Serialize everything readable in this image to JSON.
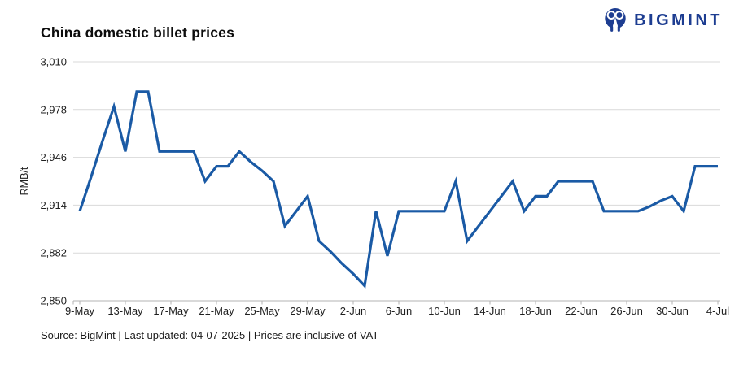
{
  "header": {
    "title": "China domestic billet prices"
  },
  "logo": {
    "text": "BIGMINT",
    "color": "#1d3d91"
  },
  "footer": {
    "text": "Source: BigMint | Last updated: 04-07-2025 | Prices are inclusive of VAT"
  },
  "chart_data": {
    "type": "line",
    "title": "China domestic billet prices",
    "xlabel": "",
    "ylabel": "RMB/t",
    "ylim": [
      2850,
      3010
    ],
    "yticks": [
      2850,
      2882,
      2914,
      2946,
      2978,
      3010
    ],
    "xticks": [
      "9-May",
      "13-May",
      "17-May",
      "21-May",
      "25-May",
      "29-May",
      "2-Jun",
      "6-Jun",
      "10-Jun",
      "14-Jun",
      "18-Jun",
      "22-Jun",
      "26-Jun",
      "30-Jun",
      "4-Jul"
    ],
    "grid": true,
    "legend": "none",
    "line_color": "#1a5aa5",
    "grid_color": "#d9d9d9",
    "axis_color": "#b3b3b3",
    "tick_text_color": "#1f1f1f",
    "x": [
      "9-May",
      "10-May",
      "11-May",
      "12-May",
      "13-May",
      "14-May",
      "15-May",
      "16-May",
      "17-May",
      "18-May",
      "19-May",
      "20-May",
      "21-May",
      "22-May",
      "23-May",
      "24-May",
      "25-May",
      "26-May",
      "27-May",
      "28-May",
      "29-May",
      "30-May",
      "31-May",
      "1-Jun",
      "2-Jun",
      "3-Jun",
      "4-Jun",
      "5-Jun",
      "6-Jun",
      "7-Jun",
      "8-Jun",
      "9-Jun",
      "10-Jun",
      "11-Jun",
      "12-Jun",
      "13-Jun",
      "14-Jun",
      "15-Jun",
      "16-Jun",
      "17-Jun",
      "18-Jun",
      "19-Jun",
      "20-Jun",
      "21-Jun",
      "22-Jun",
      "23-Jun",
      "24-Jun",
      "25-Jun",
      "26-Jun",
      "27-Jun",
      "28-Jun",
      "29-Jun",
      "30-Jun",
      "1-Jul",
      "2-Jul",
      "3-Jul",
      "4-Jul"
    ],
    "values": [
      2910,
      2933,
      2957,
      2980,
      2950,
      2990,
      2990,
      2950,
      2950,
      2950,
      2950,
      2930,
      2940,
      2940,
      2950,
      2943,
      2937,
      2930,
      2900,
      2910,
      2920,
      2890,
      2883,
      2875,
      2868,
      2860,
      2910,
      2880,
      2910,
      2910,
      2910,
      2910,
      2910,
      2930,
      2890,
      2900,
      2910,
      2920,
      2930,
      2910,
      2920,
      2920,
      2930,
      2930,
      2930,
      2930,
      2910,
      2910,
      2910,
      2910,
      2913,
      2917,
      2920,
      2910,
      2940,
      2940,
      2940
    ]
  }
}
